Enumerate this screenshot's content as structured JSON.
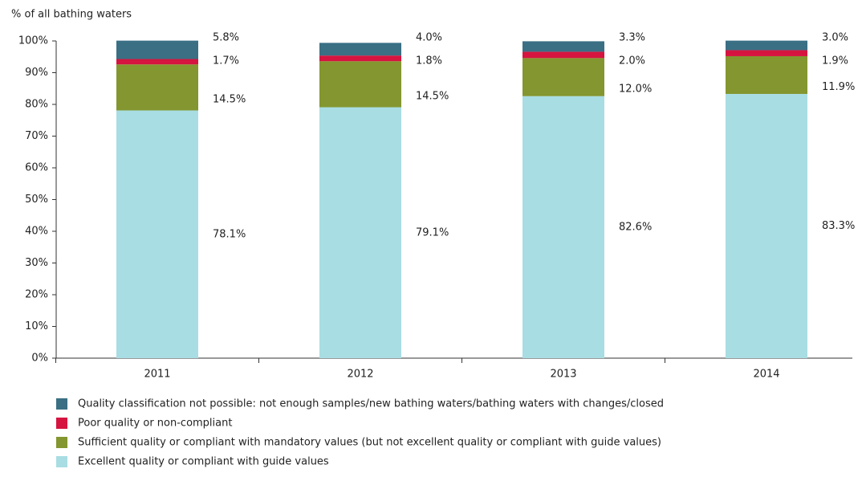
{
  "chart_data": {
    "type": "stacked_bar",
    "y_axis_label": "% of all bathing waters",
    "categories": [
      "2011",
      "2012",
      "2013",
      "2014"
    ],
    "series": [
      {
        "name": "Excellent quality or compliant with guide values",
        "color": "#a8dde3",
        "values": [
          78.1,
          79.1,
          82.6,
          83.3
        ],
        "value_labels": [
          "78.1%",
          "79.1%",
          "82.6%",
          "83.3%"
        ]
      },
      {
        "name": "Sufficient quality or compliant with mandatory values (but not excellent quality or compliant with guide values)",
        "color": "#83962f",
        "values": [
          14.5,
          14.5,
          12.0,
          11.9
        ],
        "value_labels": [
          "14.5%",
          "14.5%",
          "12.0%",
          "11.9%"
        ]
      },
      {
        "name": "Poor quality or non-compliant",
        "color": "#d5143f",
        "values": [
          1.7,
          1.8,
          2.0,
          1.9
        ],
        "value_labels": [
          "1.7%",
          "1.8%",
          "2.0%",
          "1.9%"
        ]
      },
      {
        "name": "Quality classification not possible: not enough samples/new bathing waters/bathing waters with changes/closed",
        "color": "#3a6f84",
        "values": [
          5.8,
          4.0,
          3.3,
          3.0
        ],
        "value_labels": [
          "5.8%",
          "4.0%",
          "3.3%",
          "3.0%"
        ]
      }
    ],
    "ylim": [
      0,
      100
    ],
    "yticks": [
      {
        "value": 0,
        "label": "0%"
      },
      {
        "value": 10,
        "label": "10%"
      },
      {
        "value": 20,
        "label": "20%"
      },
      {
        "value": 30,
        "label": "30%"
      },
      {
        "value": 40,
        "label": "40%"
      },
      {
        "value": 50,
        "label": "50%"
      },
      {
        "value": 60,
        "label": "60%"
      },
      {
        "value": 70,
        "label": "70%"
      },
      {
        "value": 80,
        "label": "80%"
      },
      {
        "value": 90,
        "label": "90%"
      },
      {
        "value": 100,
        "label": "100%"
      }
    ],
    "grid": false
  }
}
